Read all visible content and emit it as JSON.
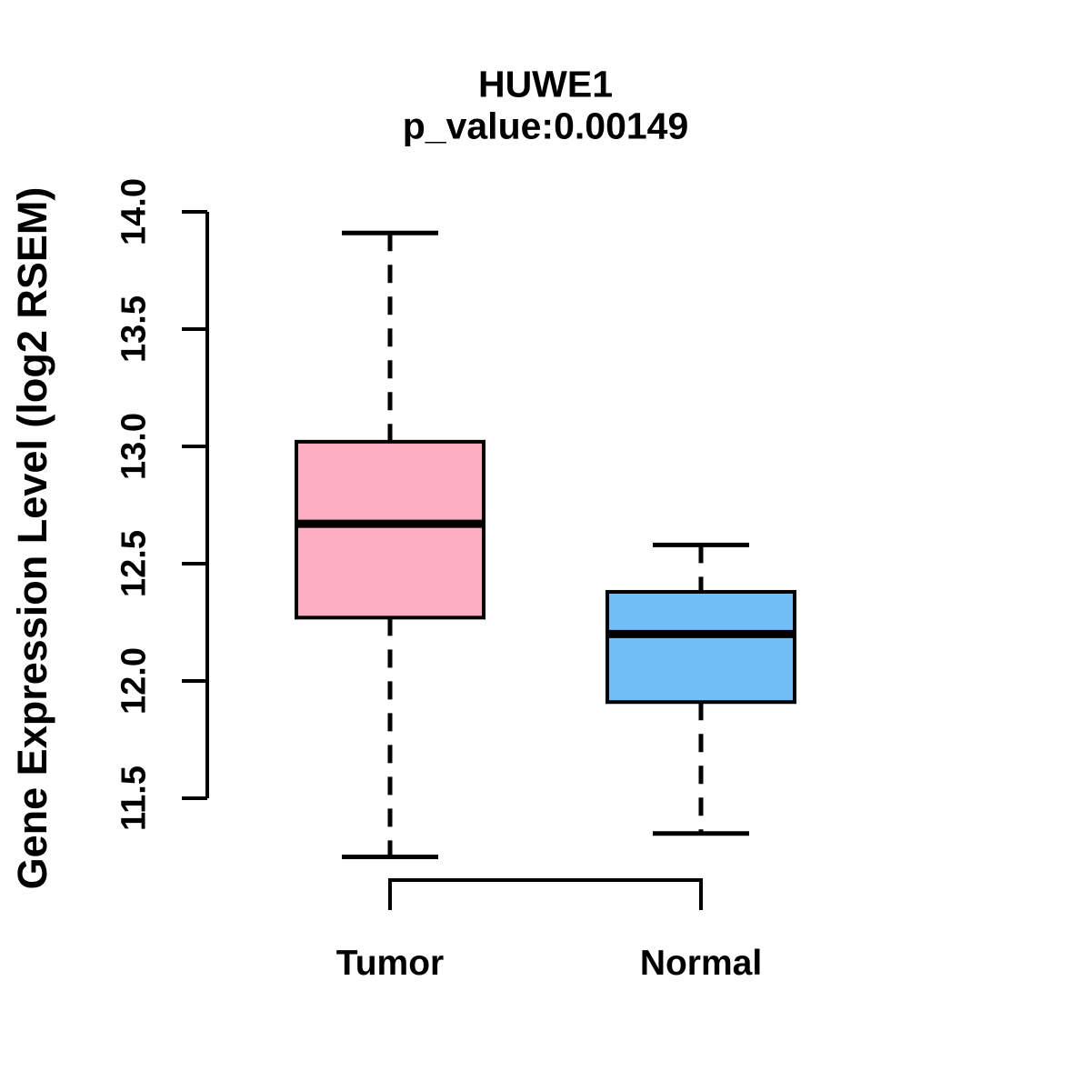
{
  "chart_data": {
    "type": "boxplot",
    "title": "HUWE1",
    "subtitle": "p_value:0.00149",
    "ylabel": "Gene Expression Level (log2 RSEM)",
    "xlabel": "",
    "yaxis_range": [
      11.5,
      14.0
    ],
    "ytick_values": [
      11.5,
      12.0,
      12.5,
      13.0,
      13.5,
      14.0
    ],
    "ytick_labels": [
      "11.5",
      "12.0",
      "12.5",
      "13.0",
      "13.5",
      "14.0"
    ],
    "grid": false,
    "legend": "none",
    "colors": {
      "axis_and_text": "#000000",
      "box_border": "#000000",
      "median_line": "#000000",
      "tumor_fill": "#FCADC1",
      "normal_fill": "#72BFF7"
    },
    "groups": [
      {
        "label": "Tumor",
        "fill": "#FCADC1",
        "whisker_low": 11.25,
        "q1": 12.27,
        "median": 12.67,
        "q3": 13.02,
        "whisker_high": 13.91
      },
      {
        "label": "Normal",
        "fill": "#72BFF7",
        "whisker_low": 11.35,
        "q1": 11.91,
        "median": 12.2,
        "q3": 12.38,
        "whisker_high": 12.58
      }
    ]
  }
}
